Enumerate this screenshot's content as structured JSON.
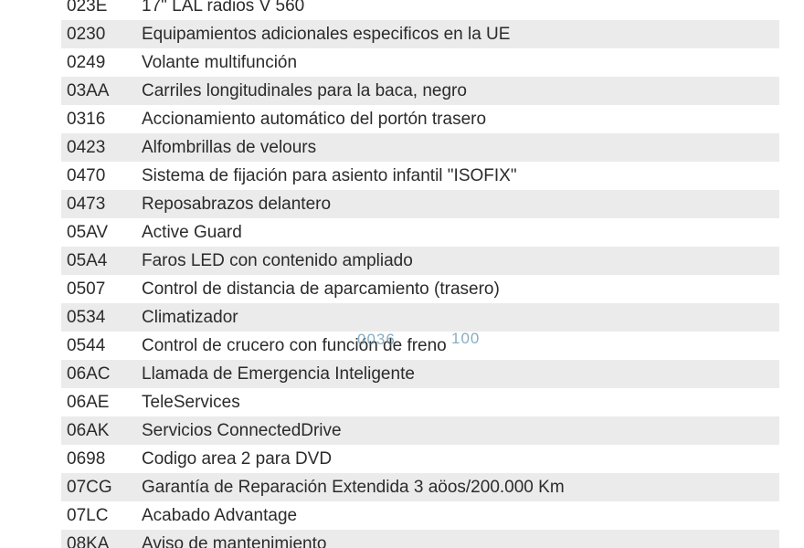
{
  "colors": {
    "background": "#ffffff",
    "row_stripe": "#ebebeb",
    "text": "#2b2b2b",
    "watermark": "#6092ac"
  },
  "table": {
    "rows": [
      {
        "code": "023E",
        "description": "17\" LAL radios V 560"
      },
      {
        "code": "0230",
        "description": "Equipamientos adicionales especificos en la UE"
      },
      {
        "code": "0249",
        "description": "Volante multifunción"
      },
      {
        "code": "03AA",
        "description": "Carriles longitudinales para la baca, negro"
      },
      {
        "code": "0316",
        "description": "Accionamiento automático del portón trasero"
      },
      {
        "code": "0423",
        "description": "Alfombrillas de velours"
      },
      {
        "code": "0470",
        "description": "Sistema de fijación para asiento infantil \"ISOFIX\""
      },
      {
        "code": "0473",
        "description": "Reposabrazos delantero"
      },
      {
        "code": "05AV",
        "description": "Active Guard"
      },
      {
        "code": "05A4",
        "description": "Faros LED con contenido ampliado"
      },
      {
        "code": "0507",
        "description": "Control de distancia de aparcamiento (trasero)"
      },
      {
        "code": "0534",
        "description": "Climatizador"
      },
      {
        "code": "0544",
        "description": "Control de crucero con función de freno"
      },
      {
        "code": "06AC",
        "description": "Llamada de Emergencia Inteligente"
      },
      {
        "code": "06AE",
        "description": "TeleServices"
      },
      {
        "code": "06AK",
        "description": "Servicios ConnectedDrive"
      },
      {
        "code": "0698",
        "description": "Codigo area 2 para DVD"
      },
      {
        "code": "07CG",
        "description": "Garantía de Reparación Extendida 3 aöos/200.000 Km"
      },
      {
        "code": "07LC",
        "description": "Acabado Advantage"
      },
      {
        "code": "08KA",
        "description": "Aviso de mantenimiento"
      }
    ]
  },
  "watermark": {
    "left_text": "0036",
    "right_text": "100"
  }
}
